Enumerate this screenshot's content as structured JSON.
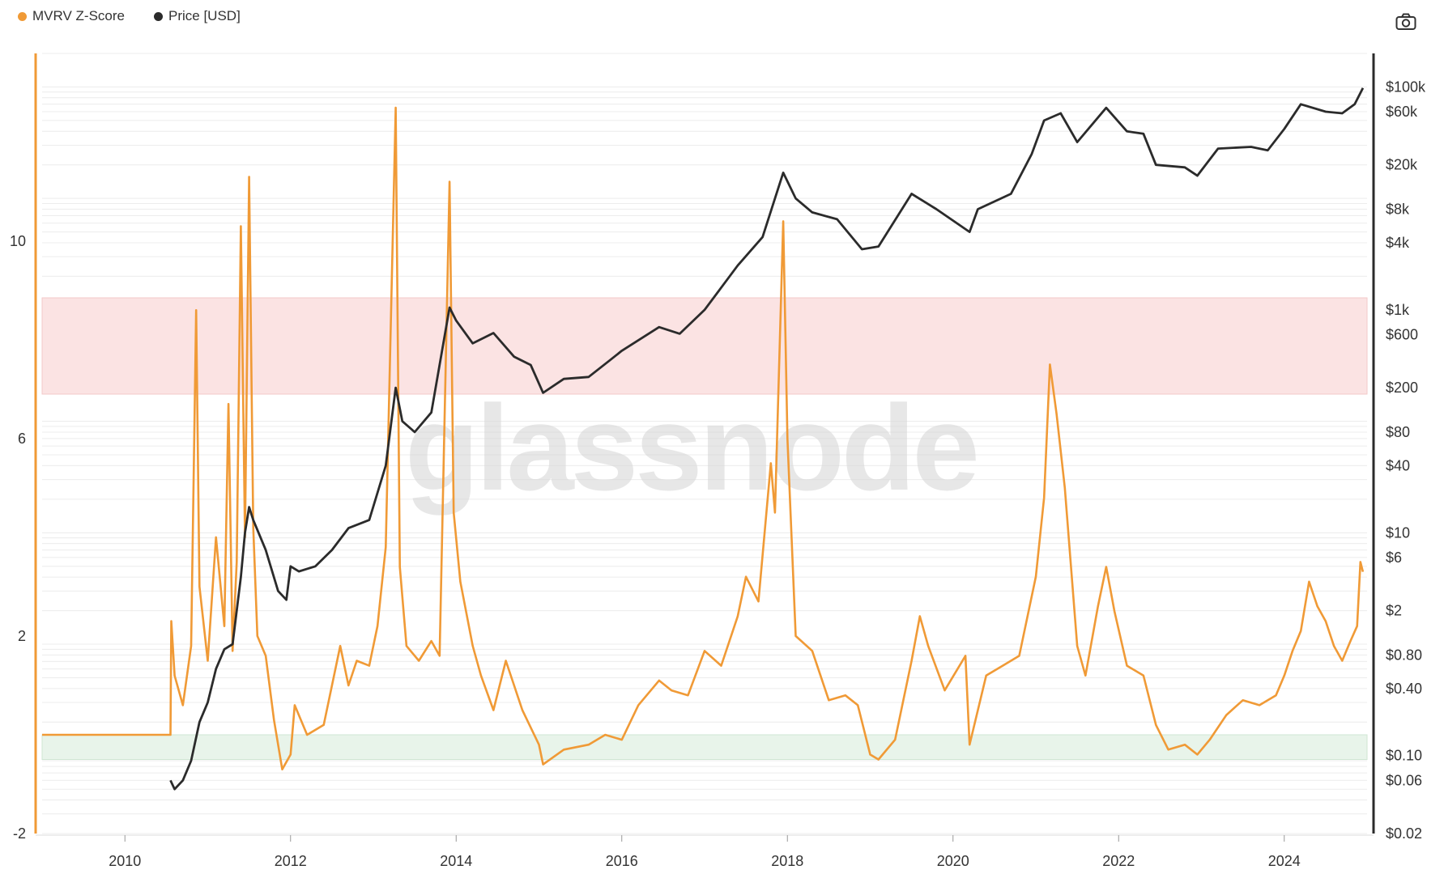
{
  "legend": {
    "series1": "MVRV Z-Score",
    "series2": "Price [USD]"
  },
  "toolbar": {
    "screenshot_icon": "camera-icon"
  },
  "watermark": "glassnode",
  "colors": {
    "mvrv": "#f09a36",
    "price": "#2b2b2b",
    "red_band": "#fbe3e3",
    "green_band": "#e8f4ea",
    "grid": "#ececec"
  },
  "chart_data": {
    "type": "line",
    "x_ticks": [
      "2010",
      "2012",
      "2014",
      "2016",
      "2018",
      "2020",
      "2022",
      "2024"
    ],
    "x_range": [
      2009.0,
      2025.0
    ],
    "left_axis": {
      "ticks": [
        "10",
        "6",
        "2",
        "-2"
      ],
      "range": [
        -2,
        13.8
      ]
    },
    "right_axis": {
      "scale": "log",
      "ticks": [
        "$100k",
        "$60k",
        "$20k",
        "$8k",
        "$4k",
        "$1k",
        "$600",
        "$200",
        "$80",
        "$40",
        "$10",
        "$6",
        "$2",
        "$0.80",
        "$0.40",
        "$0.10",
        "$0.06",
        "$0.02"
      ],
      "range": [
        0.02,
        200000
      ]
    },
    "bands": [
      {
        "axis": "left",
        "from": 6.9,
        "to": 8.85,
        "color": "red"
      },
      {
        "axis": "left",
        "from": 0.0,
        "to": -0.5,
        "color": "green"
      }
    ],
    "series": [
      {
        "name": "MVRV Z-Score",
        "axis": "left",
        "points": [
          [
            2009.0,
            0.0
          ],
          [
            2010.55,
            0.0
          ],
          [
            2010.56,
            2.3
          ],
          [
            2010.6,
            1.2
          ],
          [
            2010.7,
            0.6
          ],
          [
            2010.8,
            1.8
          ],
          [
            2010.86,
            8.6
          ],
          [
            2010.9,
            3.0
          ],
          [
            2011.0,
            1.5
          ],
          [
            2011.1,
            4.0
          ],
          [
            2011.2,
            2.2
          ],
          [
            2011.25,
            6.7
          ],
          [
            2011.3,
            1.7
          ],
          [
            2011.35,
            3.5
          ],
          [
            2011.4,
            10.3
          ],
          [
            2011.45,
            4.0
          ],
          [
            2011.5,
            11.3
          ],
          [
            2011.55,
            4.2
          ],
          [
            2011.6,
            2.0
          ],
          [
            2011.7,
            1.6
          ],
          [
            2011.8,
            0.3
          ],
          [
            2011.9,
            -0.7
          ],
          [
            2012.0,
            -0.4
          ],
          [
            2012.05,
            0.6
          ],
          [
            2012.2,
            0.0
          ],
          [
            2012.4,
            0.2
          ],
          [
            2012.6,
            1.8
          ],
          [
            2012.7,
            1.0
          ],
          [
            2012.8,
            1.5
          ],
          [
            2012.95,
            1.4
          ],
          [
            2013.05,
            2.2
          ],
          [
            2013.15,
            3.8
          ],
          [
            2013.27,
            12.7
          ],
          [
            2013.32,
            3.4
          ],
          [
            2013.4,
            1.8
          ],
          [
            2013.55,
            1.5
          ],
          [
            2013.7,
            1.9
          ],
          [
            2013.8,
            1.6
          ],
          [
            2013.92,
            11.2
          ],
          [
            2013.97,
            4.5
          ],
          [
            2014.05,
            3.1
          ],
          [
            2014.2,
            1.8
          ],
          [
            2014.3,
            1.2
          ],
          [
            2014.45,
            0.5
          ],
          [
            2014.6,
            1.5
          ],
          [
            2014.8,
            0.5
          ],
          [
            2015.0,
            -0.2
          ],
          [
            2015.05,
            -0.6
          ],
          [
            2015.3,
            -0.3
          ],
          [
            2015.6,
            -0.2
          ],
          [
            2015.8,
            0.0
          ],
          [
            2016.0,
            -0.1
          ],
          [
            2016.2,
            0.6
          ],
          [
            2016.45,
            1.1
          ],
          [
            2016.6,
            0.9
          ],
          [
            2016.8,
            0.8
          ],
          [
            2017.0,
            1.7
          ],
          [
            2017.2,
            1.4
          ],
          [
            2017.4,
            2.4
          ],
          [
            2017.5,
            3.2
          ],
          [
            2017.65,
            2.7
          ],
          [
            2017.8,
            5.5
          ],
          [
            2017.85,
            4.5
          ],
          [
            2017.95,
            10.4
          ],
          [
            2018.0,
            6.0
          ],
          [
            2018.1,
            2.0
          ],
          [
            2018.3,
            1.7
          ],
          [
            2018.5,
            0.7
          ],
          [
            2018.7,
            0.8
          ],
          [
            2018.85,
            0.6
          ],
          [
            2019.0,
            -0.4
          ],
          [
            2019.1,
            -0.5
          ],
          [
            2019.3,
            -0.1
          ],
          [
            2019.5,
            1.5
          ],
          [
            2019.6,
            2.4
          ],
          [
            2019.7,
            1.8
          ],
          [
            2019.9,
            0.9
          ],
          [
            2020.15,
            1.6
          ],
          [
            2020.2,
            -0.2
          ],
          [
            2020.4,
            1.2
          ],
          [
            2020.6,
            1.4
          ],
          [
            2020.8,
            1.6
          ],
          [
            2021.0,
            3.2
          ],
          [
            2021.1,
            4.8
          ],
          [
            2021.17,
            7.5
          ],
          [
            2021.25,
            6.5
          ],
          [
            2021.35,
            5.0
          ],
          [
            2021.5,
            1.8
          ],
          [
            2021.6,
            1.2
          ],
          [
            2021.75,
            2.6
          ],
          [
            2021.85,
            3.4
          ],
          [
            2021.95,
            2.5
          ],
          [
            2022.1,
            1.4
          ],
          [
            2022.3,
            1.2
          ],
          [
            2022.45,
            0.2
          ],
          [
            2022.6,
            -0.3
          ],
          [
            2022.8,
            -0.2
          ],
          [
            2022.95,
            -0.4
          ],
          [
            2023.1,
            -0.1
          ],
          [
            2023.3,
            0.4
          ],
          [
            2023.5,
            0.7
          ],
          [
            2023.7,
            0.6
          ],
          [
            2023.9,
            0.8
          ],
          [
            2024.0,
            1.2
          ],
          [
            2024.1,
            1.7
          ],
          [
            2024.2,
            2.1
          ],
          [
            2024.3,
            3.1
          ],
          [
            2024.4,
            2.6
          ],
          [
            2024.5,
            2.3
          ],
          [
            2024.6,
            1.8
          ],
          [
            2024.7,
            1.5
          ],
          [
            2024.8,
            1.9
          ],
          [
            2024.88,
            2.2
          ],
          [
            2024.92,
            3.5
          ],
          [
            2024.95,
            3.3
          ]
        ]
      },
      {
        "name": "Price [USD]",
        "axis": "right",
        "points": [
          [
            2010.55,
            0.06
          ],
          [
            2010.6,
            0.05
          ],
          [
            2010.7,
            0.06
          ],
          [
            2010.8,
            0.09
          ],
          [
            2010.9,
            0.2
          ],
          [
            2011.0,
            0.3
          ],
          [
            2011.1,
            0.6
          ],
          [
            2011.2,
            0.9
          ],
          [
            2011.3,
            1.0
          ],
          [
            2011.4,
            4.0
          ],
          [
            2011.45,
            10.0
          ],
          [
            2011.5,
            17.0
          ],
          [
            2011.55,
            13.0
          ],
          [
            2011.7,
            7.0
          ],
          [
            2011.85,
            3.0
          ],
          [
            2011.95,
            2.5
          ],
          [
            2012.0,
            5.0
          ],
          [
            2012.1,
            4.5
          ],
          [
            2012.3,
            5.0
          ],
          [
            2012.5,
            7.0
          ],
          [
            2012.7,
            11.0
          ],
          [
            2012.95,
            13.0
          ],
          [
            2013.15,
            40.0
          ],
          [
            2013.27,
            200.0
          ],
          [
            2013.35,
            100.0
          ],
          [
            2013.5,
            80.0
          ],
          [
            2013.7,
            120.0
          ],
          [
            2013.92,
            1050.0
          ],
          [
            2014.0,
            800.0
          ],
          [
            2014.2,
            500.0
          ],
          [
            2014.45,
            620.0
          ],
          [
            2014.7,
            380.0
          ],
          [
            2014.9,
            320.0
          ],
          [
            2015.05,
            180.0
          ],
          [
            2015.3,
            240.0
          ],
          [
            2015.6,
            250.0
          ],
          [
            2015.85,
            350.0
          ],
          [
            2016.0,
            430.0
          ],
          [
            2016.45,
            700.0
          ],
          [
            2016.7,
            610.0
          ],
          [
            2017.0,
            1000.0
          ],
          [
            2017.4,
            2500.0
          ],
          [
            2017.7,
            4500.0
          ],
          [
            2017.95,
            17000.0
          ],
          [
            2018.1,
            10000.0
          ],
          [
            2018.3,
            7500.0
          ],
          [
            2018.6,
            6500.0
          ],
          [
            2018.9,
            3500.0
          ],
          [
            2019.1,
            3700.0
          ],
          [
            2019.5,
            11000.0
          ],
          [
            2019.8,
            8000.0
          ],
          [
            2020.2,
            5000.0
          ],
          [
            2020.3,
            8000.0
          ],
          [
            2020.7,
            11000.0
          ],
          [
            2020.95,
            25000.0
          ],
          [
            2021.1,
            50000.0
          ],
          [
            2021.3,
            58000.0
          ],
          [
            2021.5,
            32000.0
          ],
          [
            2021.85,
            65000.0
          ],
          [
            2022.1,
            40000.0
          ],
          [
            2022.3,
            38000.0
          ],
          [
            2022.45,
            20000.0
          ],
          [
            2022.8,
            19000.0
          ],
          [
            2022.95,
            16000.0
          ],
          [
            2023.2,
            28000.0
          ],
          [
            2023.6,
            29000.0
          ],
          [
            2023.8,
            27000.0
          ],
          [
            2024.0,
            42000.0
          ],
          [
            2024.2,
            70000.0
          ],
          [
            2024.5,
            60000.0
          ],
          [
            2024.7,
            58000.0
          ],
          [
            2024.85,
            70000.0
          ],
          [
            2024.95,
            98000.0
          ]
        ]
      }
    ]
  }
}
